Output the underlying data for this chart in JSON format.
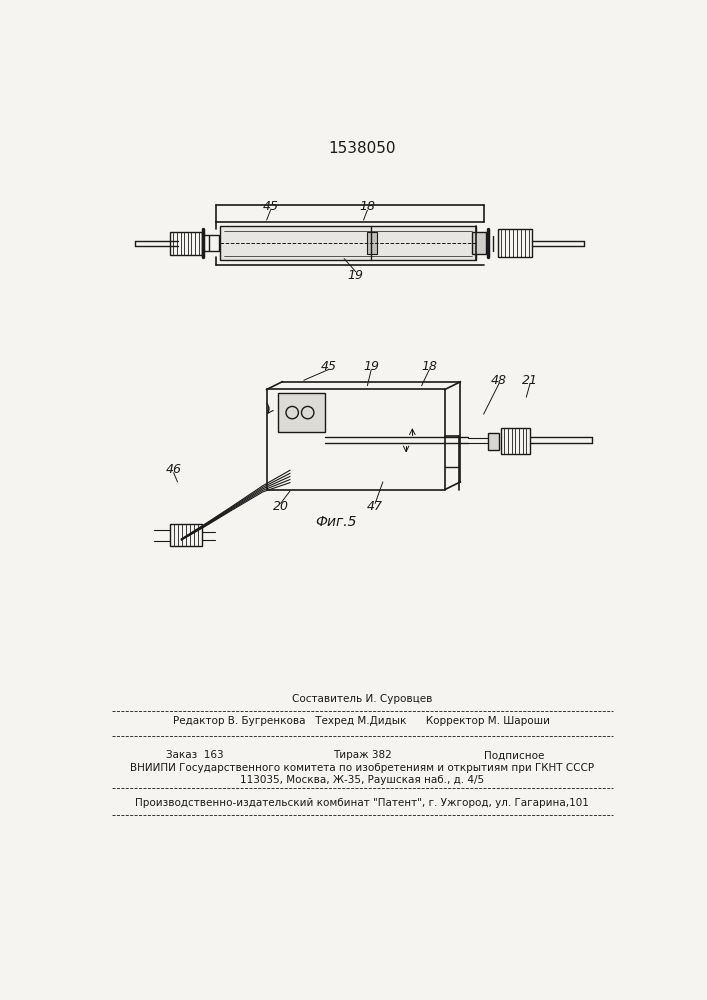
{
  "patent_number": "1538050",
  "fig_label": "Фиг.5",
  "bg_color": "#f5f4f1",
  "line_color": "#1a1a1a",
  "footer": {
    "line1": "Составитель И. Суровцев",
    "line2": "Редактор В. Бугренкова   Техред М.Дидык      Корректор М. Шароши",
    "line3": "Заказ  163                   Тираж 382              Подписное",
    "line4": "ВНИИПИ Государственного комитета по изобретениям и открытиям при ГКНТ СССР",
    "line5": "113035, Москва, Ж-35, Раушская наб., д. 4/5",
    "line6": "Производственно-издательский комбинат \"Патент\", г. Ужгород, ул. Гагарина,101"
  }
}
